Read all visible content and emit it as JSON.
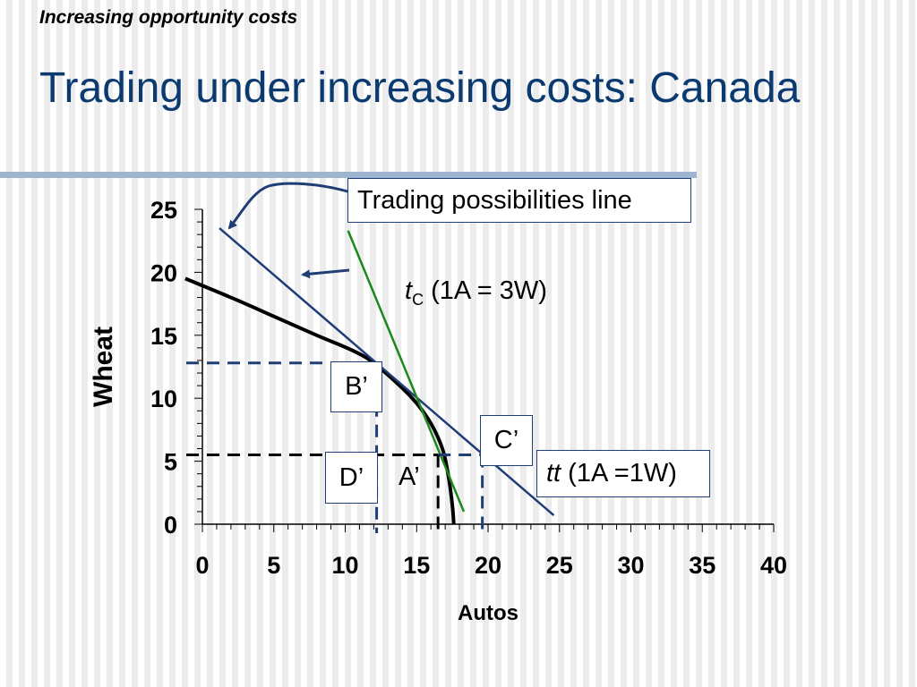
{
  "slide": {
    "kicker": "Increasing opportunity costs",
    "title": "Trading under increasing costs: Canada"
  },
  "callouts": {
    "trading_possibilities_line": "Trading possibilities line",
    "tc_symbol": "t",
    "tc_sub": "C",
    "tc_rate": " (1A = 3W)",
    "tt_symbol": "tt",
    "tt_rate": " (1A =1W)",
    "point_b": "B’",
    "point_c": "C’",
    "point_d": "D’",
    "point_a": "A’"
  },
  "colors": {
    "title": "#0b3a70",
    "ppf_curve": "#000000",
    "trading_line": "#1f3e76",
    "tc_line": "#1a8a1a",
    "dashed_navy": "#1f3e76",
    "dashed_black": "#000000"
  },
  "chart_data": {
    "type": "line",
    "xlabel": "Autos",
    "ylabel": "Wheat",
    "xlim": [
      0,
      40
    ],
    "ylim": [
      0,
      25
    ],
    "x_ticks": [
      0,
      5,
      10,
      15,
      20,
      25,
      30,
      35,
      40
    ],
    "y_ticks": [
      0,
      5,
      10,
      15,
      20,
      25
    ],
    "grid": false,
    "series": [
      {
        "key": "ppf",
        "points": [
          [
            -1.2,
            19.5
          ],
          [
            2,
            18
          ],
          [
            5,
            16.5
          ],
          [
            8,
            15
          ],
          [
            10.5,
            13.8
          ],
          [
            12,
            12.8
          ],
          [
            14,
            10.8
          ],
          [
            15,
            9.6
          ],
          [
            16,
            8
          ],
          [
            16.8,
            6
          ],
          [
            17.2,
            4
          ],
          [
            17.5,
            1.5
          ],
          [
            17.6,
            0
          ]
        ]
      },
      {
        "key": "trading_possibilities_line",
        "label_ref": "callouts.trading_possibilities_line",
        "points": [
          [
            1.2,
            23.5
          ],
          [
            24.6,
            0.7
          ]
        ]
      },
      {
        "key": "tc",
        "label_ref": "callouts.tc_rate",
        "points": [
          [
            10.2,
            23.3
          ],
          [
            18.3,
            1
          ]
        ]
      }
    ],
    "annotations": [
      {
        "point": "B’",
        "x": 12.2,
        "y": 12.8
      },
      {
        "point": "C’",
        "x": 19.6,
        "y": 5.5
      },
      {
        "point": "A’",
        "x": 16.5,
        "y": 5.5
      },
      {
        "point": "D’",
        "x": 12.2,
        "y": 5.5
      }
    ]
  }
}
